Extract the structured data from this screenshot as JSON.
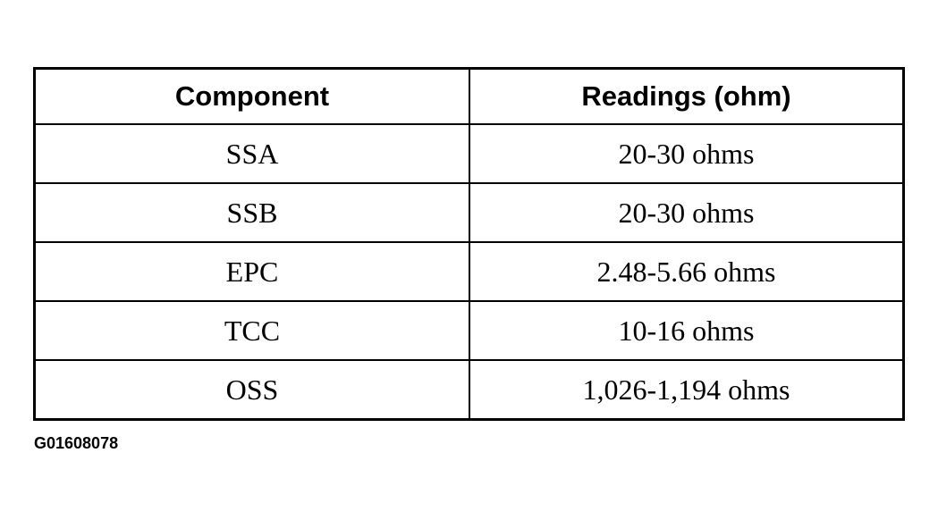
{
  "table": {
    "headers": [
      "Component",
      "Readings (ohm)"
    ],
    "rows": [
      [
        "SSA",
        "20-30 ohms"
      ],
      [
        "SSB",
        "20-30 ohms"
      ],
      [
        "EPC",
        "2.48-5.66 ohms"
      ],
      [
        "TCC",
        "10-16 ohms"
      ],
      [
        "OSS",
        "1,026-1,194 ohms"
      ]
    ]
  },
  "figure_code": "G01608078"
}
